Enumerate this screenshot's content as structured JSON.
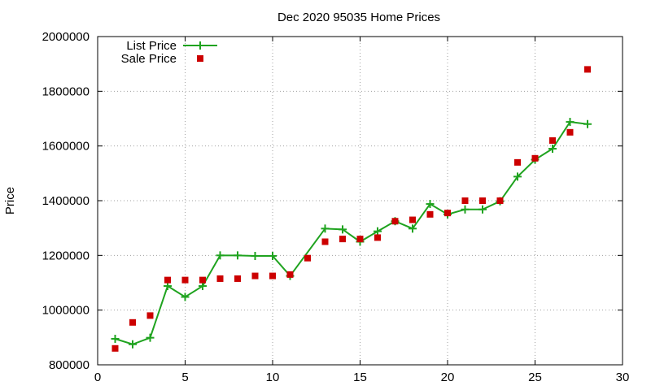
{
  "chart_data": {
    "type": "line",
    "title": "Dec 2020 95035 Home Prices",
    "xlabel": "",
    "ylabel": "Price",
    "xlim": [
      0,
      30
    ],
    "ylim": [
      800000,
      2000000
    ],
    "x_ticks": [
      0,
      5,
      10,
      15,
      20,
      25,
      30
    ],
    "y_ticks": [
      800000,
      1000000,
      1200000,
      1400000,
      1600000,
      1800000,
      2000000
    ],
    "grid": true,
    "legend_position": "top-left",
    "series": [
      {
        "name": "List Price",
        "style": "line-with-plus-markers",
        "color": "#1fa31f",
        "x": [
          1,
          2,
          3,
          4,
          5,
          6,
          7,
          8,
          9,
          10,
          11,
          13,
          14,
          15,
          16,
          17,
          18,
          19,
          20,
          21,
          22,
          23,
          24,
          25,
          26,
          27,
          28
        ],
        "y": [
          895000,
          875000,
          899000,
          1088000,
          1048000,
          1088000,
          1200000,
          1200000,
          1198000,
          1198000,
          1125000,
          1298000,
          1295000,
          1250000,
          1288000,
          1325000,
          1298000,
          1388000,
          1350000,
          1368000,
          1368000,
          1398000,
          1488000,
          1550000,
          1590000,
          1688000,
          1680000
        ]
      },
      {
        "name": "Sale Price",
        "style": "square-markers",
        "color": "#cc0000",
        "x": [
          1,
          2,
          3,
          4,
          5,
          6,
          7,
          8,
          9,
          10,
          11,
          12,
          13,
          14,
          15,
          16,
          17,
          18,
          19,
          20,
          21,
          22,
          23,
          24,
          25,
          26,
          27,
          28
        ],
        "y": [
          860000,
          955000,
          980000,
          1110000,
          1110000,
          1110000,
          1115000,
          1115000,
          1125000,
          1125000,
          1130000,
          1190000,
          1250000,
          1260000,
          1260000,
          1265000,
          1325000,
          1330000,
          1350000,
          1355000,
          1400000,
          1400000,
          1400000,
          1540000,
          1555000,
          1620000,
          1650000,
          1880000
        ]
      }
    ]
  }
}
